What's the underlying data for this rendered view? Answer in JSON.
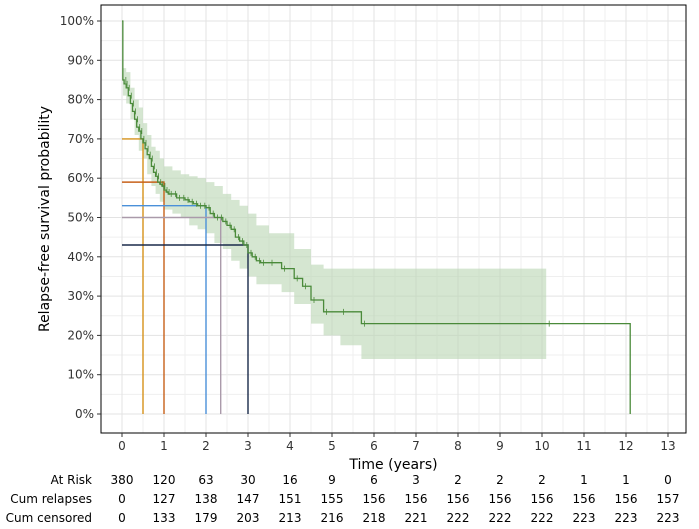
{
  "chart_data": {
    "type": "line",
    "subtype": "kaplan-meier",
    "title": "",
    "xlabel": "Time (years)",
    "ylabel": "Relapse-free survival probability",
    "xlim": [
      0,
      13
    ],
    "ylim": [
      0,
      100
    ],
    "x_ticks": [
      0,
      1,
      2,
      3,
      4,
      5,
      6,
      7,
      8,
      9,
      10,
      11,
      12,
      13
    ],
    "y_ticks": [
      0,
      10,
      20,
      30,
      40,
      50,
      60,
      70,
      80,
      90,
      100
    ],
    "y_tick_labels": [
      "0%",
      "10%",
      "20%",
      "30%",
      "40%",
      "50%",
      "60%",
      "70%",
      "80%",
      "90%",
      "100%"
    ],
    "grid": true,
    "colors": {
      "curve": "#4a8a3a",
      "ci_band": "#b9d5b2",
      "frame": "#000000",
      "grid": "#e6e6e6"
    },
    "survival": {
      "x": [
        0,
        0.02,
        0.05,
        0.1,
        0.15,
        0.2,
        0.25,
        0.3,
        0.35,
        0.4,
        0.45,
        0.5,
        0.55,
        0.6,
        0.65,
        0.7,
        0.75,
        0.8,
        0.85,
        0.9,
        0.95,
        1.0,
        1.05,
        1.1,
        1.2,
        1.3,
        1.4,
        1.5,
        1.6,
        1.7,
        1.8,
        1.9,
        2.0,
        2.1,
        2.2,
        2.3,
        2.4,
        2.5,
        2.6,
        2.7,
        2.8,
        2.9,
        3.0,
        3.1,
        3.2,
        3.3,
        3.5,
        3.8,
        4.1,
        4.3,
        4.5,
        4.8,
        5.2,
        5.7,
        10.1,
        12.05,
        12.1
      ],
      "y": [
        100,
        85,
        84,
        83,
        81,
        79,
        77,
        75,
        73,
        72,
        70,
        69,
        67.5,
        66,
        65,
        63,
        61.5,
        60.5,
        59,
        58.5,
        58,
        57,
        56.5,
        56,
        56,
        55,
        55,
        54.5,
        54,
        53.5,
        53,
        53,
        52.5,
        51,
        50,
        50,
        49,
        48,
        47,
        45,
        44,
        43,
        41,
        40,
        39,
        38.5,
        38.5,
        37,
        34.5,
        32.5,
        29,
        26,
        26,
        23,
        23,
        23,
        0
      ]
    },
    "ci_band": {
      "x": [
        0.02,
        0.1,
        0.2,
        0.3,
        0.4,
        0.5,
        0.6,
        0.7,
        0.8,
        0.9,
        1.0,
        1.2,
        1.4,
        1.6,
        1.8,
        2.0,
        2.2,
        2.4,
        2.6,
        2.8,
        3.0,
        3.2,
        3.5,
        3.8,
        4.1,
        4.5,
        4.8,
        5.2,
        5.7,
        10.1
      ],
      "lower": [
        81,
        79,
        75,
        71,
        67,
        65,
        61,
        58,
        56,
        54,
        52,
        51,
        50,
        48,
        47,
        46,
        43.5,
        42,
        39,
        37,
        35,
        33,
        33,
        31,
        28,
        23,
        20,
        17.5,
        14,
        14
      ],
      "upper": [
        88,
        87,
        83,
        80,
        78,
        74,
        71,
        68,
        67,
        65,
        63,
        62,
        61,
        60.5,
        60,
        59,
        58,
        56,
        54.5,
        53,
        51,
        48,
        46,
        46,
        42,
        38,
        37,
        37,
        37,
        37
      ]
    },
    "reference_lines": [
      {
        "x": 0.5,
        "y": 70,
        "color": "#d6921a"
      },
      {
        "x": 1.0,
        "y": 59,
        "color": "#c8601a"
      },
      {
        "x": 2.0,
        "y": 53,
        "color": "#4a90d9"
      },
      {
        "x": 2.35,
        "y": 50,
        "color": "#aa9aaa"
      },
      {
        "x": 3.0,
        "y": 43,
        "color": "#1a2a4a"
      }
    ],
    "risk_table": {
      "rows": [
        {
          "label": "At Risk",
          "values": [
            380,
            120,
            63,
            30,
            16,
            9,
            6,
            3,
            2,
            2,
            2,
            1,
            1,
            0
          ]
        },
        {
          "label": "Cum relapses",
          "values": [
            0,
            127,
            138,
            147,
            151,
            155,
            156,
            156,
            156,
            156,
            156,
            156,
            156,
            157
          ]
        },
        {
          "label": "Cum censored",
          "values": [
            0,
            133,
            179,
            203,
            213,
            216,
            218,
            221,
            222,
            222,
            222,
            223,
            223,
            223
          ]
        }
      ]
    }
  }
}
